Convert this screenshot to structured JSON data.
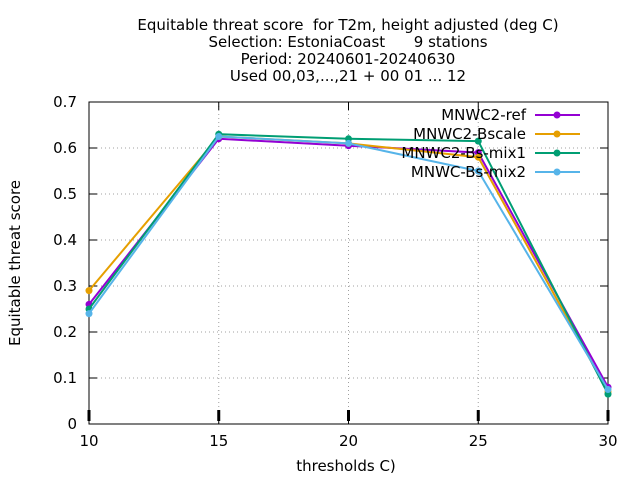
{
  "chart_data": {
    "type": "line",
    "title_lines": [
      "Equitable threat score  for T2m, height adjusted (deg C)",
      "Selection: EstoniaCoast      9 stations",
      "Period: 20240601-20240630",
      "Used 00,03,...,21 + 00 01 ... 12"
    ],
    "xlabel": "thresholds C)",
    "ylabel": "Equitable threat score",
    "x": [
      10,
      15,
      20,
      25,
      30
    ],
    "x_ticks": [
      "10",
      "15",
      "20",
      "25",
      "30"
    ],
    "xlim": [
      10,
      30
    ],
    "y_ticks": [
      "0",
      "0.1",
      "0.2",
      "0.3",
      "0.4",
      "0.5",
      "0.6",
      "0.7"
    ],
    "ylim": [
      0,
      0.7
    ],
    "grid": true,
    "legend_position": "top-right",
    "series": [
      {
        "name": "MNWC2-ref",
        "color": "#9400d3",
        "values": [
          0.26,
          0.62,
          0.605,
          0.59,
          0.08
        ]
      },
      {
        "name": "MNWC2-Bscale",
        "color": "#e69f00",
        "values": [
          0.29,
          0.625,
          0.61,
          0.58,
          0.07
        ]
      },
      {
        "name": "MNWC2-Bs-mix1",
        "color": "#009e73",
        "values": [
          0.25,
          0.63,
          0.62,
          0.615,
          0.065
        ]
      },
      {
        "name": "MNWC-Bs-mix2",
        "color": "#56b4e9",
        "values": [
          0.24,
          0.625,
          0.61,
          0.55,
          0.075
        ]
      }
    ]
  }
}
